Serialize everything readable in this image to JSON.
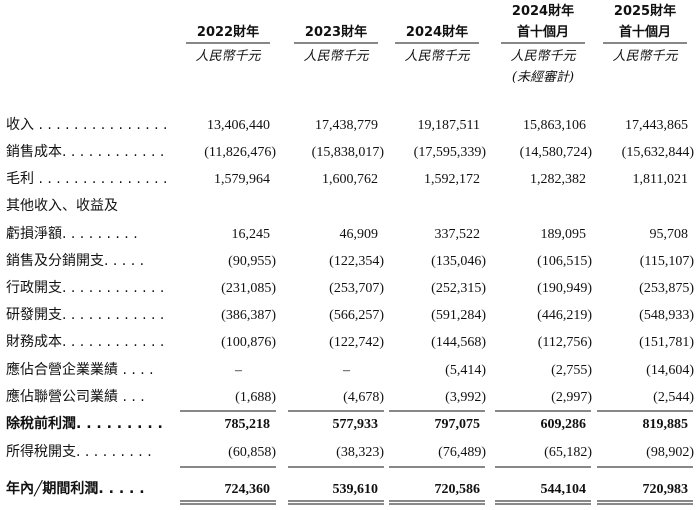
{
  "table": {
    "columns": [
      {
        "lines": [
          "2022財年"
        ],
        "unit": [
          "人民幣千元"
        ]
      },
      {
        "lines": [
          "2023財年"
        ],
        "unit": [
          "人民幣千元"
        ]
      },
      {
        "lines": [
          "2024財年"
        ],
        "unit": [
          "人民幣千元"
        ]
      },
      {
        "lines": [
          "2024財年",
          "首十個月"
        ],
        "unit": [
          "人民幣千元",
          "(未經審計)"
        ]
      },
      {
        "lines": [
          "2025財年",
          "首十個月"
        ],
        "unit": [
          "人民幣千元"
        ]
      }
    ],
    "rows": [
      {
        "label": "收入 . . . . . . . . . . . . . . .",
        "values": [
          "13,406,440",
          "17,438,779",
          "19,187,511",
          "15,863,106",
          "17,443,865"
        ]
      },
      {
        "label": "銷售成本. . . . . . . . . . . .",
        "values": [
          "(11,826,476)",
          "(15,838,017)",
          "(17,595,339)",
          "(14,580,724)",
          "(15,632,844)"
        ]
      },
      {
        "label": "毛利 . . . . . . . . . . . . . . .",
        "values": [
          "1,579,964",
          "1,600,762",
          "1,592,172",
          "1,282,382",
          "1,811,021"
        ]
      },
      {
        "label": "其他收入、收益及"
      },
      {
        "label": "虧損淨額. . . . . . . . .",
        "values": [
          "16,245",
          "46,909",
          "337,522",
          "189,095",
          "95,708"
        ]
      },
      {
        "label": "銷售及分銷開支. . . . .",
        "values": [
          "(90,955)",
          "(122,354)",
          "(135,046)",
          "(106,515)",
          "(115,107)"
        ]
      },
      {
        "label": "行政開支. . . . . . . . . . . .",
        "values": [
          "(231,085)",
          "(253,707)",
          "(252,315)",
          "(190,949)",
          "(253,875)"
        ]
      },
      {
        "label": "研發開支. . . . . . . . . . . .",
        "values": [
          "(386,387)",
          "(566,257)",
          "(591,284)",
          "(446,219)",
          "(548,933)"
        ]
      },
      {
        "label": "財務成本. . . . . . . . . . . .",
        "values": [
          "(100,876)",
          "(122,742)",
          "(144,568)",
          "(112,756)",
          "(151,781)"
        ]
      },
      {
        "label": "應佔合營企業業績 . . . .",
        "values": [
          "–",
          "–",
          "(5,414)",
          "(2,755)",
          "(14,604)"
        ]
      },
      {
        "label": "應佔聯營公司業績 . . .",
        "values": [
          "(1,688)",
          "(4,678)",
          "(3,992)",
          "(2,997)",
          "(2,544)"
        ]
      },
      {
        "label": "除稅前利潤. . . . . . . . .",
        "values": [
          "785,218",
          "577,933",
          "797,075",
          "609,286",
          "819,885"
        ]
      },
      {
        "label": "所得稅開支. . . . . . . . .",
        "values": [
          "(60,858)",
          "(38,323)",
          "(76,489)",
          "(65,182)",
          "(98,902)"
        ]
      },
      {
        "label": "年內╱期間利潤. . . . .",
        "values": [
          "724,360",
          "539,610",
          "720,586",
          "544,104",
          "720,983"
        ]
      }
    ]
  }
}
